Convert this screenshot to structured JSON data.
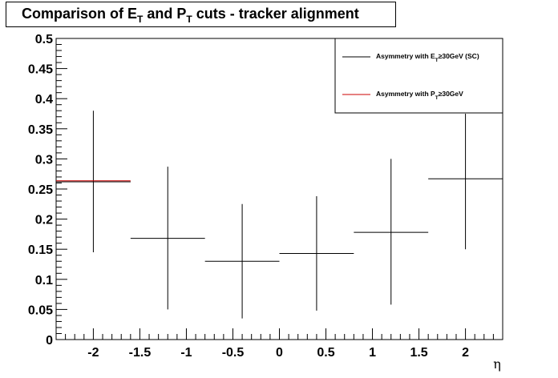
{
  "title": {
    "pre": "Comparison of E",
    "sub1": "T",
    "mid": " and P",
    "sub2": "T",
    "post": " cuts - tracker alignment"
  },
  "chart_data": {
    "type": "scatter",
    "xlabel": "η",
    "ylabel": "",
    "xlim": [
      -2.4,
      2.4
    ],
    "ylim": [
      0,
      0.5
    ],
    "x_ticks": [
      -2,
      -1.5,
      -1,
      -0.5,
      0,
      0.5,
      1,
      1.5,
      2
    ],
    "x_tick_labels": [
      "-2",
      "-1.5",
      "-1",
      "-0.5",
      "0",
      "0.5",
      "1",
      "1.5",
      "2"
    ],
    "y_ticks": [
      0,
      0.05,
      0.1,
      0.15,
      0.2,
      0.25,
      0.3,
      0.35,
      0.4,
      0.45,
      0.5
    ],
    "y_tick_labels": [
      "0",
      "0.05",
      "0.1",
      "0.15",
      "0.2",
      "0.25",
      "0.3",
      "0.35",
      "0.4",
      "0.45",
      "0.5"
    ],
    "grid": false,
    "legend_position": "top-right",
    "series": [
      {
        "name_main": "Asymmetry with E",
        "name_sub": "T",
        "name_rest": "≥30GeV (SC)",
        "color": "#000000",
        "points": [
          {
            "x": -2.0,
            "xerr": 0.4,
            "y": 0.262,
            "ylow": 0.145,
            "yhigh": 0.38
          },
          {
            "x": -1.2,
            "xerr": 0.4,
            "y": 0.168,
            "ylow": 0.05,
            "yhigh": 0.287
          },
          {
            "x": -0.4,
            "xerr": 0.4,
            "y": 0.13,
            "ylow": 0.035,
            "yhigh": 0.225
          },
          {
            "x": 0.4,
            "xerr": 0.4,
            "y": 0.143,
            "ylow": 0.048,
            "yhigh": 0.238
          },
          {
            "x": 1.2,
            "xerr": 0.4,
            "y": 0.178,
            "ylow": 0.058,
            "yhigh": 0.3
          },
          {
            "x": 2.0,
            "xerr": 0.4,
            "y": 0.267,
            "ylow": 0.15,
            "yhigh": 0.375
          }
        ]
      },
      {
        "name_main": "Asymmetry with P",
        "name_sub": "T",
        "name_rest": "≥30GeV",
        "color": "#cc0000",
        "points": [
          {
            "x": -2.0,
            "xerr": 0.4,
            "y": 0.262,
            "ylow": 0.262,
            "yhigh": 0.262
          }
        ]
      }
    ]
  }
}
